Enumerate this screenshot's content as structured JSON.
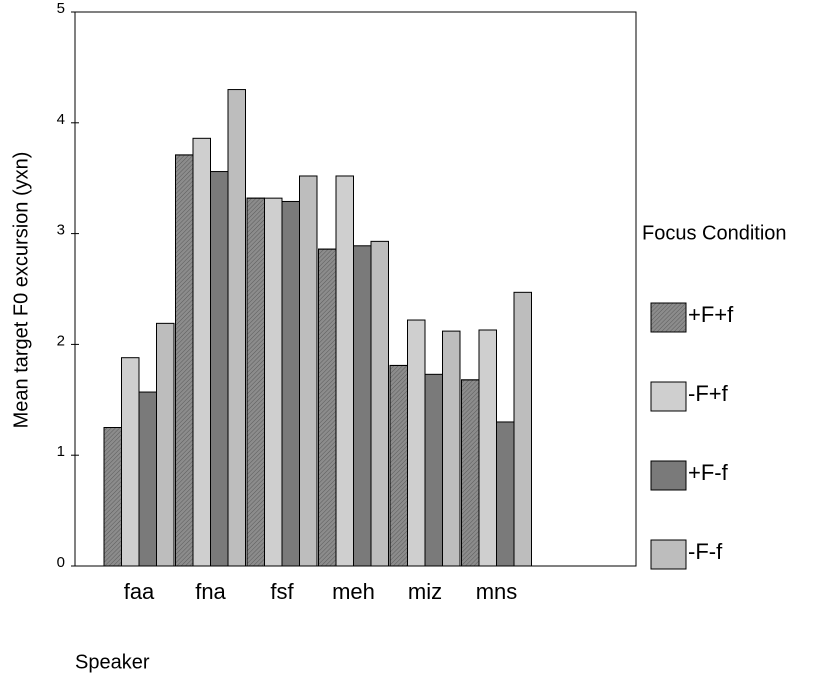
{
  "chart_data": {
    "type": "bar",
    "x_label": "Speaker",
    "y_label": "Mean target F0 excursion (yxn)",
    "legend_title": "Focus Condition",
    "legend_position": "right",
    "categories": [
      "faa",
      "fna",
      "fsf",
      "meh",
      "miz",
      "mns"
    ],
    "series": [
      {
        "name": "+F+f",
        "color": "#8c8c8c",
        "values": [
          1.25,
          3.71,
          3.32,
          2.86,
          1.81,
          1.68
        ]
      },
      {
        "name": "-F+f",
        "color": "#cfcfcf",
        "values": [
          1.88,
          3.86,
          3.32,
          3.52,
          2.22,
          2.13
        ]
      },
      {
        "name": "+F-f",
        "color": "#7a7a7a",
        "values": [
          1.57,
          3.56,
          3.29,
          2.89,
          1.73,
          1.3
        ]
      },
      {
        "name": "-F-f",
        "color": "#bdbdbd",
        "values": [
          2.19,
          4.3,
          3.52,
          2.93,
          2.12,
          2.47
        ]
      }
    ],
    "ylim": [
      0,
      5
    ],
    "yticks": [
      0,
      1,
      2,
      3,
      4,
      5
    ]
  }
}
